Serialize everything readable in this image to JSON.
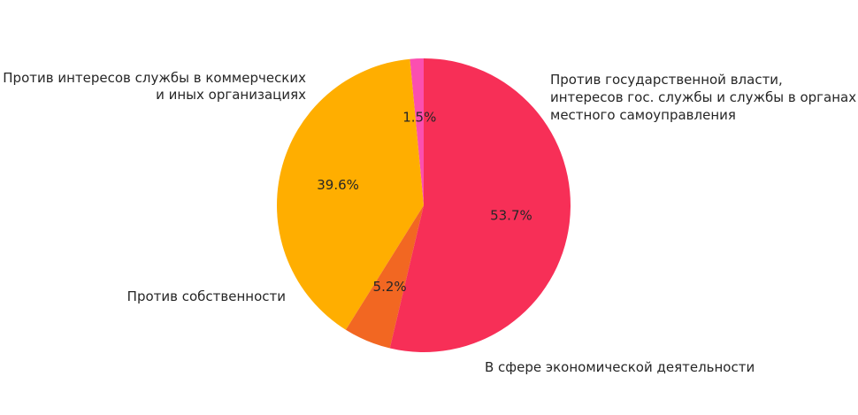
{
  "chart_data": {
    "type": "pie",
    "title": "",
    "start_angle_deg": 90,
    "direction": "counterclockwise",
    "slices": [
      {
        "label_lines": [
          "Против интересов службы в коммерческих",
          "и иных организациях"
        ],
        "value": 1.5,
        "pct_label": "1.5%",
        "color": "#fb4fb0"
      },
      {
        "label_lines": [
          "Против собственности"
        ],
        "value": 39.6,
        "pct_label": "39.6%",
        "color": "#ffae00"
      },
      {
        "label_lines": [
          "В сфере экономической деятельности"
        ],
        "value": 5.2,
        "pct_label": "5.2%",
        "color": "#f26722"
      },
      {
        "label_lines": [
          "Против государственной власти,",
          "интересов гос. службы и службы в органах",
          "местного самоуправления"
        ],
        "value": 53.7,
        "pct_label": "53.7%",
        "color": "#f72f57"
      }
    ]
  }
}
